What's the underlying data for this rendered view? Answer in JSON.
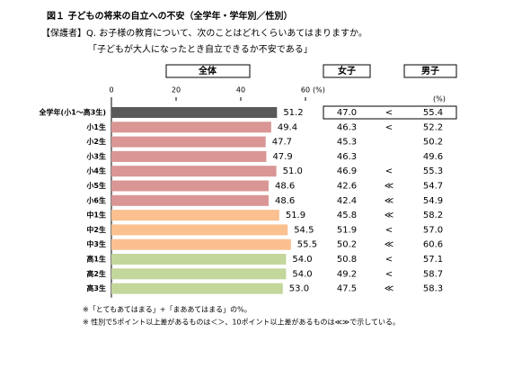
{
  "header": {
    "title": "図１ 子どもの将来の自立への不安（全学年・学年別／性別）",
    "question": "【保護者】Q. お子様の教育について、次のことはどれくらいあてはまりますか。",
    "item": "「子どもが大人になったとき自立できるか不安である」"
  },
  "chart_data": {
    "type": "bar",
    "orientation": "horizontal",
    "label": "全体",
    "unit": "(%)",
    "categories": [
      "全学年(小1～高3生)",
      "小1生",
      "小2生",
      "小3生",
      "小4生",
      "小5生",
      "小6生",
      "中1生",
      "中2生",
      "中3生",
      "高1生",
      "高2生",
      "高3生"
    ],
    "values": [
      51.2,
      49.4,
      47.7,
      47.9,
      51.0,
      48.6,
      48.6,
      51.9,
      54.5,
      55.5,
      54.0,
      54.0,
      53.0
    ],
    "value_labels": [
      "51.2",
      "49.4",
      "47.7",
      "47.9",
      "51.0",
      "48.6",
      "48.6",
      "51.9",
      "54.5",
      "55.5",
      "54.0",
      "54.0",
      "53.0"
    ],
    "colors": [
      "#595959",
      "#d99694",
      "#d99694",
      "#d99694",
      "#d99694",
      "#d99694",
      "#d99694",
      "#fac090",
      "#fac090",
      "#fac090",
      "#c3d69b",
      "#c3d69b",
      "#c3d69b"
    ],
    "xlim": [
      0,
      60
    ],
    "xticks": [
      0,
      20,
      40,
      60
    ]
  },
  "table": {
    "unit": "(%)",
    "female": {
      "name": "女子",
      "values": [
        "47.0",
        "46.3",
        "45.3",
        "46.3",
        "46.9",
        "42.6",
        "42.4",
        "45.8",
        "51.9",
        "50.2",
        "50.8",
        "49.2",
        "47.5"
      ]
    },
    "comparison": [
      "<",
      "<",
      null,
      null,
      "<",
      "≪",
      "≪",
      "≪",
      "<",
      "≪",
      "<",
      "<",
      "≪"
    ],
    "male": {
      "name": "男子",
      "values": [
        "55.4",
        "52.2",
        "50.2",
        "49.6",
        "55.3",
        "54.7",
        "54.9",
        "58.2",
        "57.0",
        "60.6",
        "57.1",
        "58.7",
        "58.3"
      ]
    }
  },
  "notes": [
    "※「とてもあてはまる」+「まああてはまる」の%。",
    "※ 性別で5ポイント以上差があるものは＜＞、10ポイント以上差があるものは≪≫で示している。"
  ]
}
